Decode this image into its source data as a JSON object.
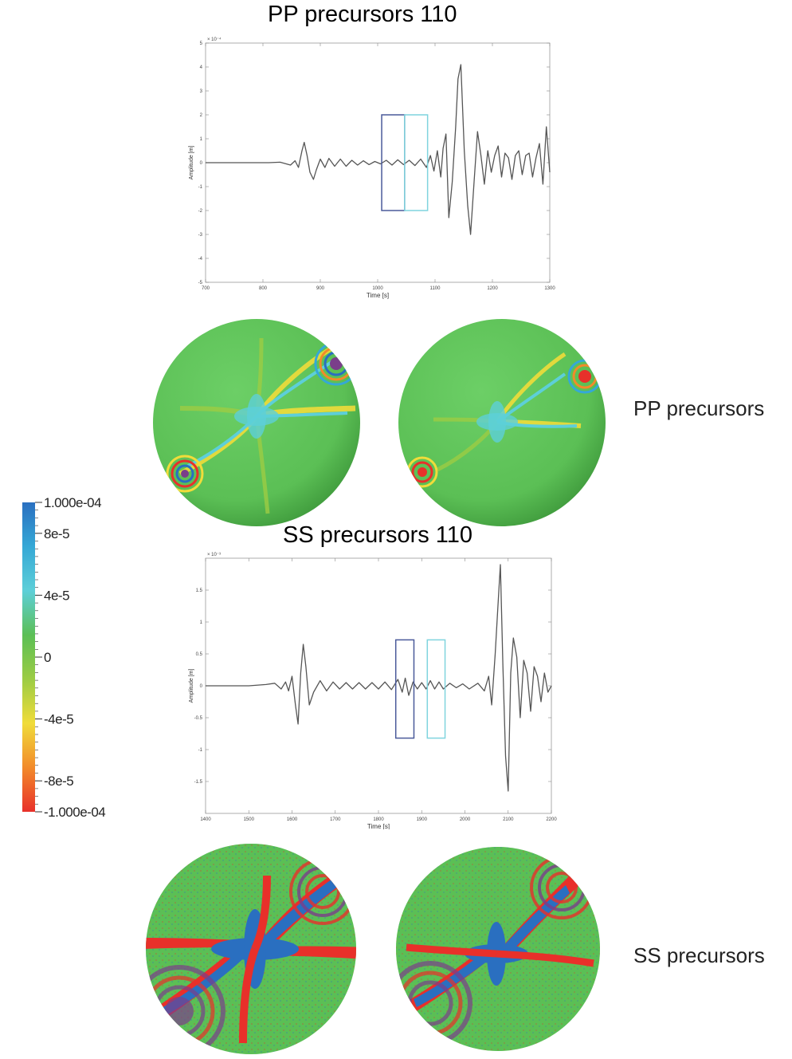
{
  "titles": {
    "pp": "PP precursors  110",
    "ss": "SS precursors 110"
  },
  "side_labels": {
    "pp": "PP precursors",
    "ss": "SS precursors"
  },
  "colorbar": {
    "labels": [
      "1.000e-04",
      "8e-5",
      "4e-5",
      "0",
      "-4e-5",
      "-8e-5",
      "-1.000e-04"
    ],
    "values": [
      0.0001,
      8e-05,
      4e-05,
      0,
      -4e-05,
      -8e-05,
      -0.0001
    ],
    "colors": [
      "#2a6fc0",
      "#35a8d6",
      "#5dcfd8",
      "#5bbf55",
      "#9ccc44",
      "#f0dc3a",
      "#f28a2a",
      "#e8302a"
    ]
  },
  "chart_data": [
    {
      "type": "line",
      "id": "pp",
      "title": "PP precursors  110",
      "xlabel": "Time [s]",
      "ylabel": "Amplitude [m]",
      "exponent": "× 10⁻⁴",
      "xlim": [
        700,
        1300
      ],
      "ylim": [
        -5,
        5
      ],
      "xticks": [
        700,
        800,
        900,
        1000,
        1100,
        1200,
        1300
      ],
      "yticks": [
        -5,
        -4,
        -3,
        -2,
        -1,
        0,
        1,
        2,
        3,
        4,
        5
      ],
      "grid": false,
      "line_color": "#555555",
      "series": [
        {
          "x": [
            700,
            810,
            830,
            848,
            856,
            862,
            868,
            872,
            877,
            882,
            888,
            893,
            900,
            908,
            915,
            925,
            935,
            945,
            955,
            965,
            975,
            985,
            995,
            1005,
            1015,
            1025,
            1035,
            1045,
            1055,
            1065,
            1075,
            1085,
            1092,
            1098,
            1104,
            1110,
            1114,
            1119,
            1124,
            1130,
            1136,
            1140,
            1145,
            1151,
            1157,
            1162,
            1168,
            1174,
            1180,
            1186,
            1192,
            1198,
            1204,
            1210,
            1216,
            1222,
            1228,
            1234,
            1240,
            1246,
            1252,
            1258,
            1264,
            1270,
            1276,
            1282,
            1288,
            1294,
            1300
          ],
          "y": [
            0,
            0,
            0.02,
            -0.1,
            0.08,
            -0.2,
            0.5,
            0.85,
            0.3,
            -0.4,
            -0.7,
            -0.3,
            0.15,
            -0.2,
            0.18,
            -0.15,
            0.15,
            -0.15,
            0.1,
            -0.1,
            0.08,
            -0.08,
            0.05,
            -0.05,
            0.1,
            -0.1,
            0.12,
            -0.08,
            0.1,
            -0.12,
            0.15,
            -0.2,
            0.3,
            -0.35,
            0.5,
            -0.6,
            0.6,
            1.2,
            -2.3,
            -0.8,
            1.5,
            3.5,
            4.1,
            0.5,
            -1.8,
            -3.0,
            -0.8,
            1.3,
            0.3,
            -0.9,
            0.5,
            -0.4,
            0.3,
            0.7,
            -0.6,
            0.4,
            0.2,
            -0.7,
            0.3,
            0.5,
            -0.5,
            0.3,
            0.4,
            -0.6,
            0.2,
            0.8,
            -0.9,
            1.5,
            -0.4
          ]
        }
      ],
      "boxes": [
        {
          "x0": 1007,
          "x1": 1047,
          "y0": -2,
          "y1": 2,
          "color": "#4a5a9a"
        },
        {
          "x0": 1047,
          "x1": 1087,
          "y0": -2,
          "y1": 2,
          "color": "#7fd4de"
        }
      ]
    },
    {
      "type": "line",
      "id": "ss",
      "title": "SS precursors 110",
      "xlabel": "Time [s]",
      "ylabel": "Amplitude [m]",
      "exponent": "× 10⁻³",
      "xlim": [
        1400,
        2200
      ],
      "ylim": [
        -2,
        2
      ],
      "xticks": [
        1400,
        1500,
        1600,
        1700,
        1800,
        1900,
        2000,
        2100,
        2200
      ],
      "yticks": [
        -1.5,
        -1,
        -0.5,
        0,
        0.5,
        1,
        1.5
      ],
      "grid": false,
      "line_color": "#555555",
      "series": [
        {
          "x": [
            1400,
            1500,
            1540,
            1560,
            1575,
            1585,
            1592,
            1600,
            1608,
            1614,
            1620,
            1626,
            1632,
            1640,
            1650,
            1665,
            1680,
            1695,
            1710,
            1725,
            1740,
            1755,
            1770,
            1785,
            1800,
            1815,
            1830,
            1845,
            1855,
            1862,
            1870,
            1880,
            1890,
            1900,
            1910,
            1920,
            1930,
            1940,
            1950,
            1965,
            1980,
            1995,
            2010,
            2030,
            2045,
            2055,
            2062,
            2070,
            2076,
            2082,
            2088,
            2094,
            2100,
            2106,
            2112,
            2120,
            2128,
            2136,
            2144,
            2152,
            2160,
            2168,
            2176,
            2184,
            2192,
            2200
          ],
          "y": [
            0,
            0,
            0.02,
            0.04,
            -0.05,
            0.06,
            -0.08,
            0.15,
            -0.3,
            -0.6,
            0.2,
            0.65,
            0.3,
            -0.3,
            -0.1,
            0.08,
            -0.08,
            0.06,
            -0.05,
            0.05,
            -0.05,
            0.05,
            -0.05,
            0.05,
            -0.05,
            0.06,
            -0.06,
            0.1,
            -0.1,
            0.12,
            -0.15,
            0.06,
            -0.05,
            0.05,
            -0.05,
            0.08,
            -0.05,
            0.06,
            -0.05,
            0.04,
            -0.03,
            0.03,
            -0.05,
            0.04,
            -0.08,
            0.15,
            -0.3,
            0.5,
            1.2,
            1.9,
            0.3,
            -1.1,
            -1.65,
            0.2,
            0.75,
            0.45,
            -0.5,
            0.4,
            0.2,
            -0.4,
            0.3,
            0.15,
            -0.25,
            0.2,
            -0.1,
            0.0
          ]
        }
      ],
      "boxes": [
        {
          "x0": 1840,
          "x1": 1882,
          "y0": -0.82,
          "y1": 0.72,
          "color": "#4a5a9a"
        },
        {
          "x0": 1913,
          "x1": 1954,
          "y0": -0.82,
          "y1": 0.72,
          "color": "#7fd4de"
        }
      ]
    }
  ],
  "spheres": {
    "base_color": "#5bbf55",
    "pp_count": 2,
    "ss_count": 2
  }
}
